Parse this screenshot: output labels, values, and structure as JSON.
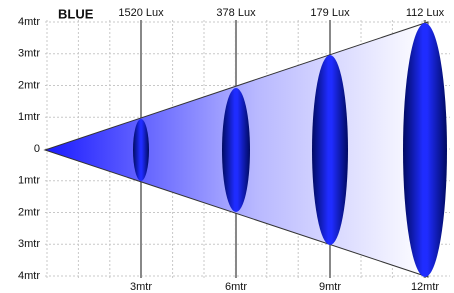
{
  "title": "BLUE",
  "y_labels": [
    "4mtr",
    "3mtr",
    "2mtr",
    "1mtr",
    "0",
    "1mtr",
    "2mtr",
    "3mtr",
    "4mtr"
  ],
  "distances": [
    "3mtr",
    "6mtr",
    "9mtr",
    "12mtr"
  ],
  "lux": [
    "1520 Lux",
    "378 Lux",
    "179 Lux",
    "112 Lux"
  ]
}
